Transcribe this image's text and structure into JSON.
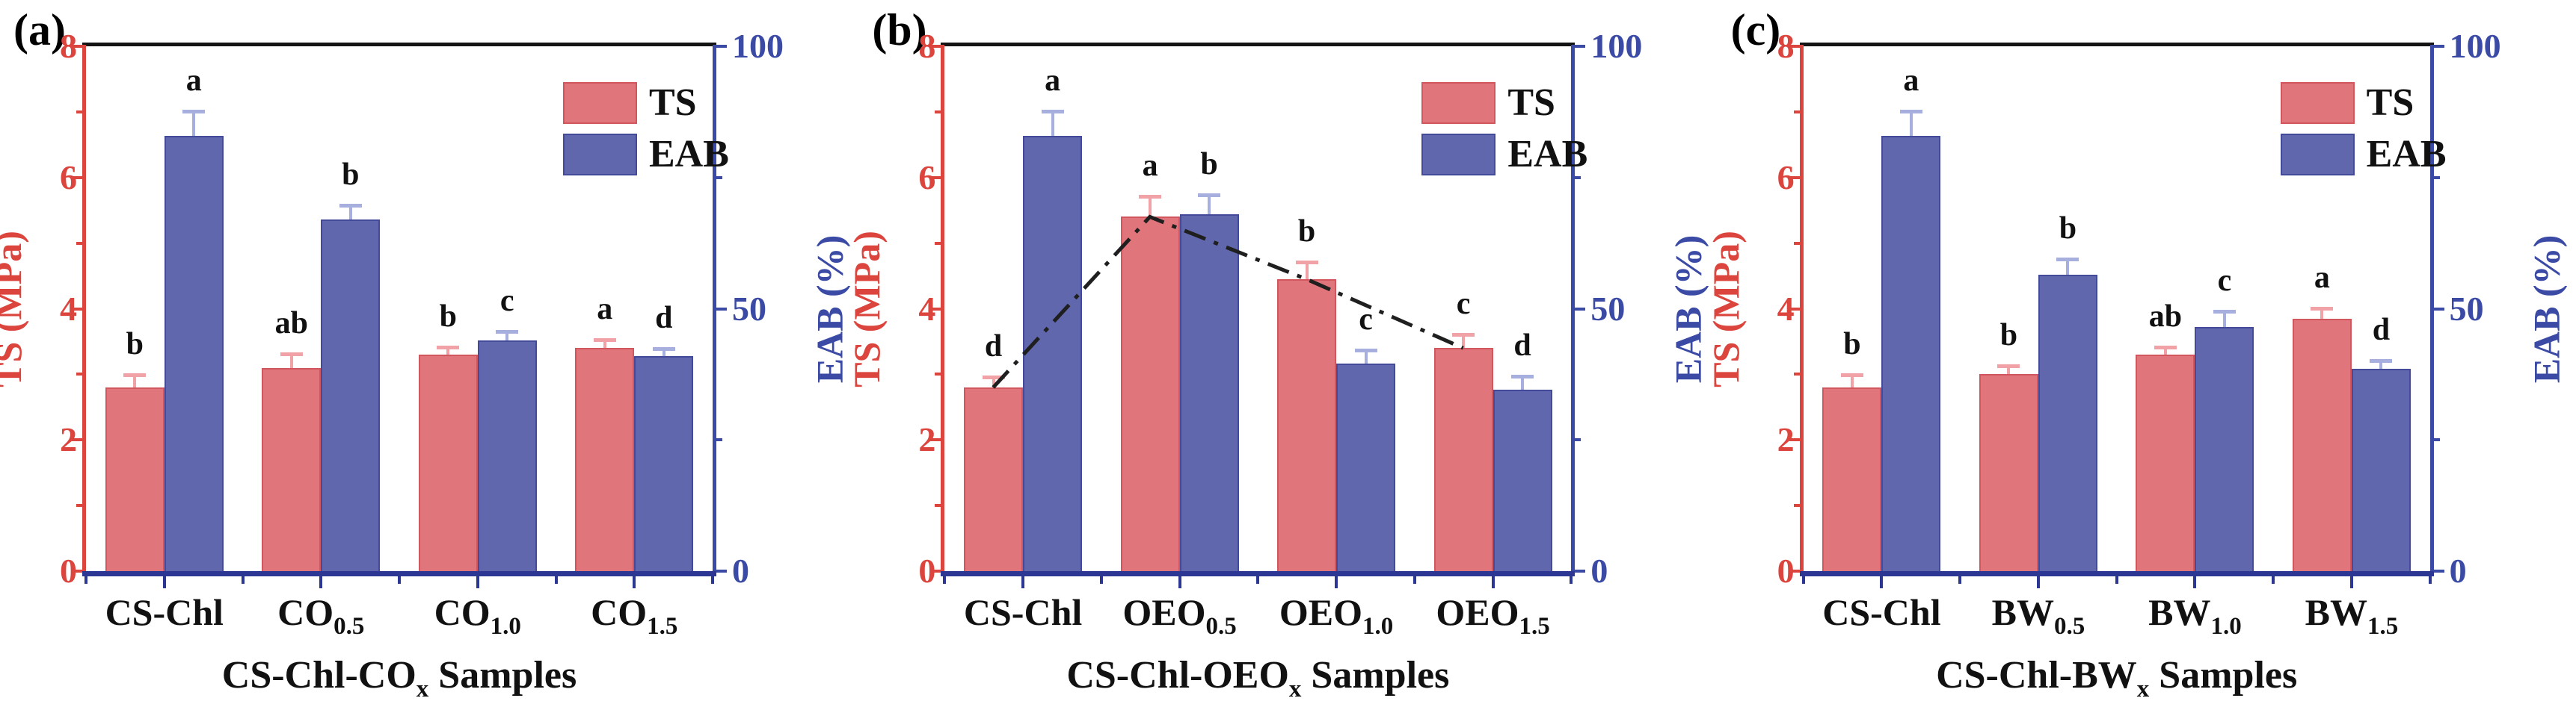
{
  "figure_title": "",
  "colors": {
    "ts_fill": "#E0757B",
    "ts_edge": "#D2565E",
    "eab_fill": "#6067AD",
    "eab_edge": "#434A99",
    "ts_err": "#F0A2A6",
    "eab_err": "#A6AFDE",
    "axis_left": "#DC453E",
    "axis_right": "#3A4AA5",
    "axis_bottom": "#2C3693",
    "axis_top": "#141414",
    "letter_color": "#111111",
    "trend": "#1F1F1F",
    "xtick_color": "#111111"
  },
  "chart_data": [
    {
      "type": "bar",
      "panel_label": "(a)",
      "categories": [
        {
          "base": "CS-Chl",
          "sub": ""
        },
        {
          "base": "CO",
          "sub": "0.5"
        },
        {
          "base": "CO",
          "sub": "1.0"
        },
        {
          "base": "CO",
          "sub": "1.5"
        }
      ],
      "xlabel": {
        "prefix": "CS-Chl-CO",
        "sub": "x",
        "suffix": " Samples"
      },
      "axes": {
        "left": {
          "title": "TS (MPa)",
          "min": 0,
          "max": 8,
          "ticks": [
            0,
            2,
            4,
            6,
            8
          ],
          "minor_ticks": [
            1,
            3,
            5,
            7
          ]
        },
        "right": {
          "title": "EAB (%)",
          "min": 0,
          "max": 100,
          "ticks": [
            0,
            50,
            100
          ],
          "minor_ticks": [
            25,
            75
          ]
        }
      },
      "legend": [
        "TS",
        "EAB"
      ],
      "series": [
        {
          "name": "TS",
          "axis": "left",
          "values": [
            2.8,
            3.1,
            3.3,
            3.4
          ],
          "errors": [
            0.18,
            0.2,
            0.1,
            0.12
          ],
          "letters": [
            "b",
            "ab",
            "b",
            "a"
          ]
        },
        {
          "name": "EAB",
          "axis": "right",
          "values": [
            83,
            67,
            44,
            41
          ],
          "errors": [
            4.5,
            2.5,
            1.5,
            1.2
          ],
          "letters": [
            "a",
            "b",
            "c",
            "d"
          ]
        }
      ],
      "trend_line_series": null
    },
    {
      "type": "bar",
      "panel_label": "(b)",
      "categories": [
        {
          "base": "CS-Chl",
          "sub": ""
        },
        {
          "base": "OEO",
          "sub": "0.5"
        },
        {
          "base": "OEO",
          "sub": "1.0"
        },
        {
          "base": "OEO",
          "sub": "1.5"
        }
      ],
      "xlabel": {
        "prefix": "CS-Chl-OEO",
        "sub": "x",
        "suffix": " Samples"
      },
      "axes": {
        "left": {
          "title": "TS (MPa)",
          "min": 0,
          "max": 8,
          "ticks": [
            0,
            2,
            4,
            6,
            8
          ],
          "minor_ticks": [
            1,
            3,
            5,
            7
          ]
        },
        "right": {
          "title": "EAB (%)",
          "min": 0,
          "max": 100,
          "ticks": [
            0,
            50,
            100
          ],
          "minor_ticks": [
            25,
            75
          ]
        }
      },
      "legend": [
        "TS",
        "EAB"
      ],
      "series": [
        {
          "name": "TS",
          "axis": "left",
          "values": [
            2.8,
            5.4,
            4.45,
            3.4
          ],
          "errors": [
            0.15,
            0.3,
            0.25,
            0.2
          ],
          "letters": [
            "d",
            "a",
            "b",
            "c"
          ]
        },
        {
          "name": "EAB",
          "axis": "right",
          "values": [
            83,
            68,
            39.5,
            34.5
          ],
          "errors": [
            4.5,
            3.5,
            2.5,
            2.5
          ],
          "letters": [
            "a",
            "b",
            "c",
            "d"
          ]
        }
      ],
      "trend_line_series": "TS"
    },
    {
      "type": "bar",
      "panel_label": "(c)",
      "categories": [
        {
          "base": "CS-Chl",
          "sub": ""
        },
        {
          "base": "BW",
          "sub": "0.5"
        },
        {
          "base": "BW",
          "sub": "1.0"
        },
        {
          "base": "BW",
          "sub": "1.5"
        }
      ],
      "xlabel": {
        "prefix": "CS-Chl-BW",
        "sub": "x",
        "suffix": " Samples"
      },
      "axes": {
        "left": {
          "title": "TS (MPa)",
          "min": 0,
          "max": 8,
          "ticks": [
            0,
            2,
            4,
            6,
            8
          ],
          "minor_ticks": [
            1,
            3,
            5,
            7
          ]
        },
        "right": {
          "title": "EAB (%)",
          "min": 0,
          "max": 100,
          "ticks": [
            0,
            50,
            100
          ],
          "minor_ticks": [
            25,
            75
          ]
        }
      },
      "legend": [
        "TS",
        "EAB"
      ],
      "series": [
        {
          "name": "TS",
          "axis": "left",
          "values": [
            2.8,
            3.0,
            3.3,
            3.85
          ],
          "errors": [
            0.18,
            0.12,
            0.1,
            0.15
          ],
          "letters": [
            "b",
            "b",
            "ab",
            "a"
          ]
        },
        {
          "name": "EAB",
          "axis": "right",
          "values": [
            83,
            56.5,
            46.5,
            38.5
          ],
          "errors": [
            4.5,
            2.8,
            2.8,
            1.5
          ],
          "letters": [
            "a",
            "b",
            "c",
            "d"
          ]
        }
      ],
      "trend_line_series": null
    }
  ]
}
